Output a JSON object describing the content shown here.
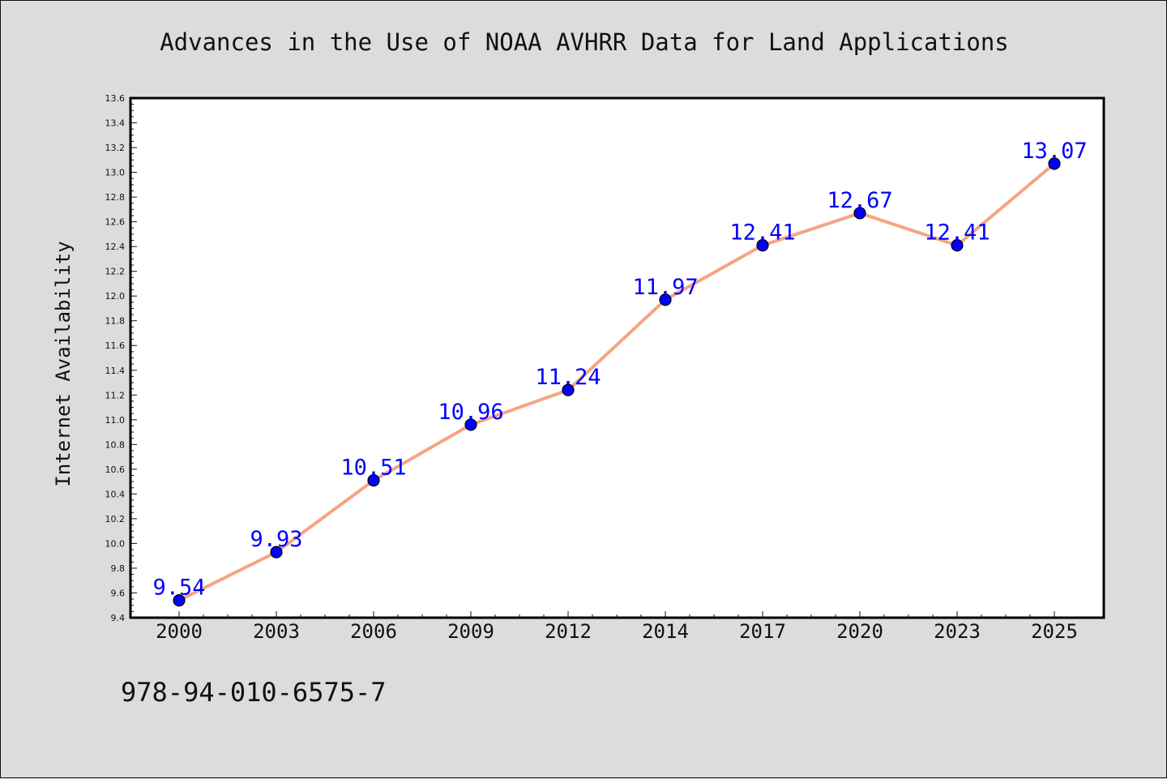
{
  "chart_data": {
    "type": "line",
    "title": "Advances in the Use of NOAA AVHRR Data for Land Applications",
    "xlabel": "",
    "ylabel": "Internet Availability",
    "categories": [
      "2000",
      "2003",
      "2006",
      "2009",
      "2012",
      "2014",
      "2017",
      "2020",
      "2023",
      "2025"
    ],
    "series": [
      {
        "values": [
          9.54,
          9.93,
          10.51,
          10.96,
          11.24,
          11.97,
          12.41,
          12.67,
          12.41,
          13.07
        ]
      }
    ],
    "data_labels": [
      "9.54",
      "9.93",
      "10.51",
      "10.96",
      "11.24",
      "11.97",
      "12.41",
      "12.67",
      "12.41",
      "13.07"
    ],
    "ylim": [
      9.4,
      13.6
    ],
    "yticks": [
      "9.4",
      "9.6",
      "9.8",
      "10.0",
      "10.2",
      "10.4",
      "10.6",
      "10.8",
      "11.0",
      "11.2",
      "11.4",
      "11.6",
      "11.8",
      "12.0",
      "12.2",
      "12.4",
      "12.6",
      "12.8",
      "13.0",
      "13.2",
      "13.4",
      "13.6"
    ],
    "grid": false,
    "line_color": "#f4a582",
    "marker_color": "#0000ff",
    "label_color": "#0000ff"
  },
  "footer": {
    "isbn": "978-94-010-6575-7"
  }
}
